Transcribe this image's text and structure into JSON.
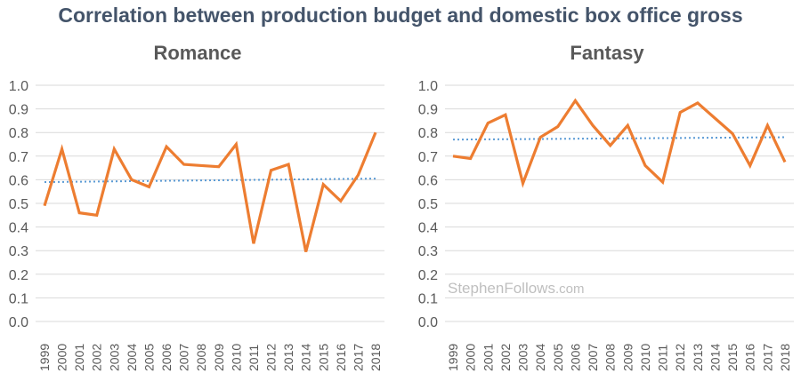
{
  "title": "Correlation between production budget and domestic box office gross",
  "watermark": {
    "main": "StephenFollows",
    "suffix": ".com"
  },
  "colors": {
    "line": "#ED7D31",
    "trend": "#5B9BD5",
    "title": "#44546A",
    "grid": "#D9D9D9",
    "text": "#595959"
  },
  "chart_data": [
    {
      "type": "line",
      "title": "Romance",
      "x": [
        "1999",
        "2000",
        "2001",
        "2002",
        "2003",
        "2004",
        "2005",
        "2006",
        "2007",
        "2008",
        "2009",
        "2010",
        "2011",
        "2012",
        "2013",
        "2014",
        "2015",
        "2016",
        "2017",
        "2018"
      ],
      "values": [
        0.49,
        0.73,
        0.46,
        0.45,
        0.73,
        0.6,
        0.57,
        0.74,
        0.665,
        0.66,
        0.655,
        0.75,
        0.33,
        0.64,
        0.665,
        0.295,
        0.58,
        0.51,
        0.62,
        0.8
      ],
      "trend": [
        0.59,
        0.605
      ],
      "yticks": [
        "0.0",
        "0.1",
        "0.2",
        "0.3",
        "0.4",
        "0.5",
        "0.6",
        "0.7",
        "0.8",
        "0.9",
        "1.0"
      ],
      "ylim": [
        0,
        1
      ],
      "grid": true,
      "xlabel": "",
      "ylabel": ""
    },
    {
      "type": "line",
      "title": "Fantasy",
      "x": [
        "1999",
        "2000",
        "2001",
        "2002",
        "2003",
        "2004",
        "2005",
        "2006",
        "2007",
        "2008",
        "2009",
        "2010",
        "2011",
        "2012",
        "2013",
        "2014",
        "2015",
        "2016",
        "2017",
        "2018"
      ],
      "values": [
        0.7,
        0.69,
        0.84,
        0.875,
        0.585,
        0.78,
        0.825,
        0.935,
        0.83,
        0.745,
        0.83,
        0.66,
        0.59,
        0.885,
        0.925,
        0.86,
        0.795,
        0.66,
        0.83,
        0.675
      ],
      "trend": [
        0.77,
        0.78
      ],
      "yticks": [
        "0.0",
        "0.1",
        "0.2",
        "0.3",
        "0.4",
        "0.5",
        "0.6",
        "0.7",
        "0.8",
        "0.9",
        "1.0"
      ],
      "ylim": [
        0,
        1
      ],
      "grid": true,
      "xlabel": "",
      "ylabel": ""
    }
  ]
}
